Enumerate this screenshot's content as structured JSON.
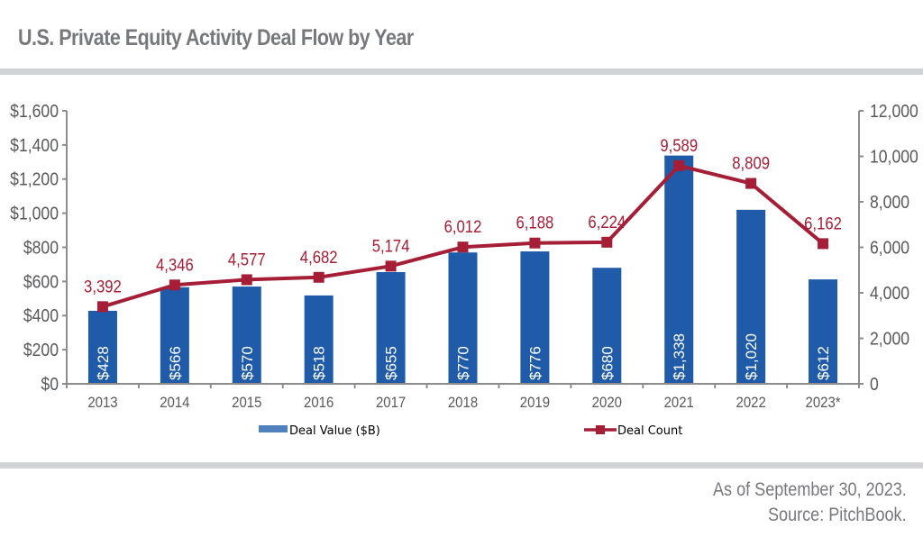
{
  "title": "U.S. Private Equity Activity Deal Flow by Year",
  "footer": {
    "line1": "As of September 30, 2023.",
    "line2": "Source: PitchBook."
  },
  "colors": {
    "bar": "#1f5ba8",
    "line": "#a51e36",
    "legend_bar": "#4f81bd",
    "axis": "#8c8c8c",
    "tick_text": "#58595b",
    "title_text": "#77787b",
    "divider": "#d1d3d4"
  },
  "chart_data": {
    "type": "bar",
    "title": "U.S. Private Equity Activity Deal Flow by Year",
    "categories": [
      "2013",
      "2014",
      "2015",
      "2016",
      "2017",
      "2018",
      "2019",
      "2020",
      "2021",
      "2022",
      "2023*"
    ],
    "series": [
      {
        "name": "Deal Value ($B)",
        "type": "bar",
        "axis": "left",
        "values": [
          428,
          566,
          570,
          518,
          655,
          770,
          776,
          680,
          1338,
          1020,
          612
        ],
        "labels": [
          "$428",
          "$566",
          "$570",
          "$518",
          "$655",
          "$770",
          "$776",
          "$680",
          "$1,338",
          "$1,020",
          "$612"
        ]
      },
      {
        "name": "Deal Count",
        "type": "line",
        "axis": "right",
        "values": [
          3392,
          4346,
          4577,
          4682,
          5174,
          6012,
          6188,
          6224,
          9589,
          8809,
          6162
        ],
        "labels": [
          "3,392",
          "4,346",
          "4,577",
          "4,682",
          "5,174",
          "6,012",
          "6,188",
          "6,224",
          "9,589",
          "8,809",
          "6,162"
        ]
      }
    ],
    "y_left": {
      "range": [
        0,
        1600
      ],
      "ticks": [
        0,
        200,
        400,
        600,
        800,
        1000,
        1200,
        1400,
        1600
      ],
      "tick_labels": [
        "$0",
        "$200",
        "$400",
        "$600",
        "$800",
        "$1,000",
        "$1,200",
        "$1,400",
        "$1,600"
      ]
    },
    "y_right": {
      "range": [
        0,
        12000
      ],
      "ticks": [
        0,
        2000,
        4000,
        6000,
        8000,
        10000,
        12000
      ],
      "tick_labels": [
        "0",
        "2,000",
        "4,000",
        "6,000",
        "8,000",
        "10,000",
        "12,000"
      ]
    },
    "xlabel": "",
    "ylabel": "",
    "grid": false,
    "legend": {
      "placement": "bottom",
      "entries": [
        "Deal Value ($B)",
        "Deal Count"
      ]
    }
  }
}
